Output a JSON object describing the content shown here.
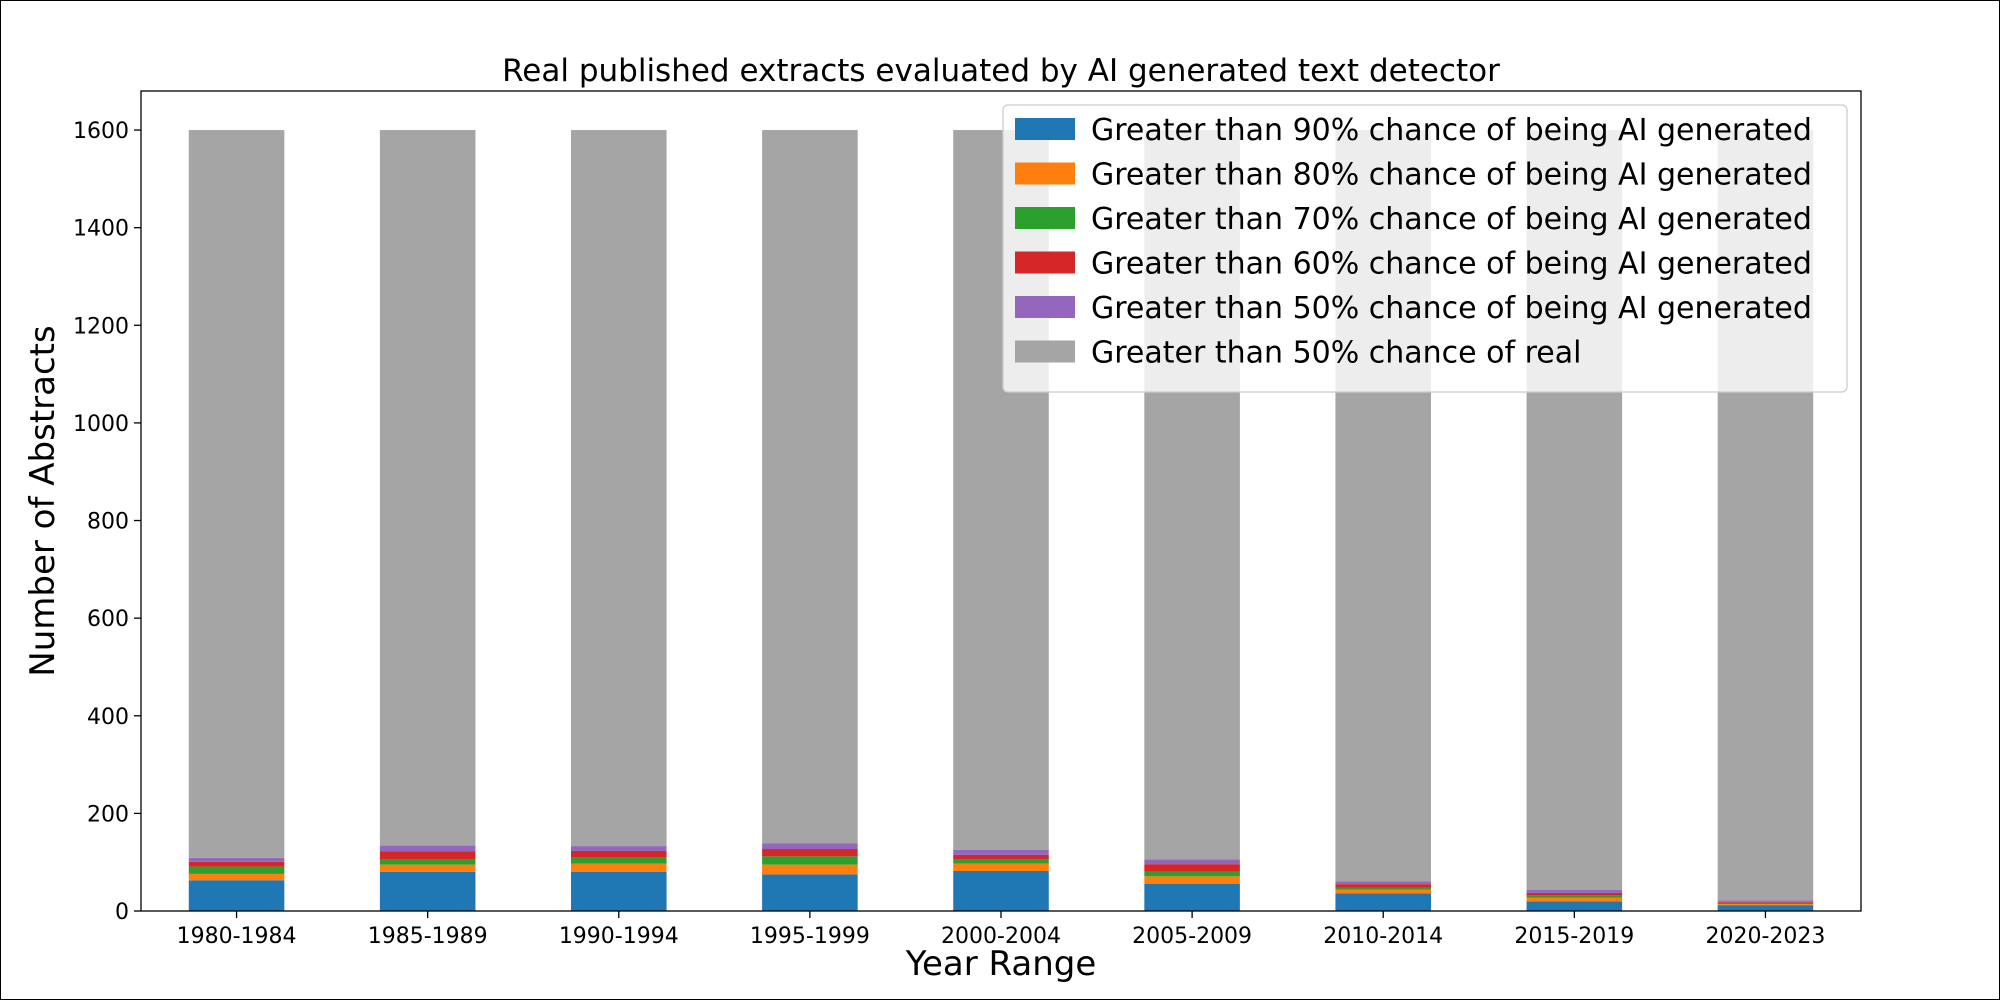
{
  "chart_data": {
    "type": "bar",
    "stacked": true,
    "title": "Real published extracts evaluated by AI generated text detector",
    "xlabel": "Year Range",
    "ylabel": "Number of Abstracts",
    "categories": [
      "1980-1984",
      "1985-1989",
      "1990-1994",
      "1995-1999",
      "2000-2004",
      "2005-2009",
      "2010-2014",
      "2015-2019",
      "2020-2023"
    ],
    "ylim": [
      0,
      1680
    ],
    "yticks": [
      0,
      200,
      400,
      600,
      800,
      1000,
      1200,
      1400,
      1600
    ],
    "grid": false,
    "legend_position": "top-right",
    "series": [
      {
        "name": "Greater than 90% chance of being AI generated",
        "color": "#1f77b4",
        "values": [
          63,
          80,
          80,
          75,
          82,
          56,
          36,
          20,
          12
        ]
      },
      {
        "name": "Greater than 80% chance of being AI generated",
        "color": "#ff7f0e",
        "values": [
          13,
          15,
          17,
          20,
          15,
          15,
          8,
          7,
          2
        ]
      },
      {
        "name": "Greater than 70% chance of being AI generated",
        "color": "#2ca02c",
        "values": [
          15,
          10,
          12,
          17,
          8,
          10,
          4,
          5,
          3
        ]
      },
      {
        "name": "Greater than 60% chance of being AI generated",
        "color": "#d62728",
        "values": [
          10,
          17,
          14,
          15,
          10,
          15,
          7,
          5,
          2
        ]
      },
      {
        "name": "Greater than 50% chance of being AI generated",
        "color": "#9467bd",
        "values": [
          8,
          12,
          10,
          12,
          10,
          10,
          6,
          6,
          3
        ]
      },
      {
        "name": "Greater than 50% chance of real",
        "color": "#a5a5a5",
        "values": [
          1491,
          1466,
          1467,
          1461,
          1475,
          1494,
          1539,
          1557,
          1578
        ]
      }
    ]
  }
}
